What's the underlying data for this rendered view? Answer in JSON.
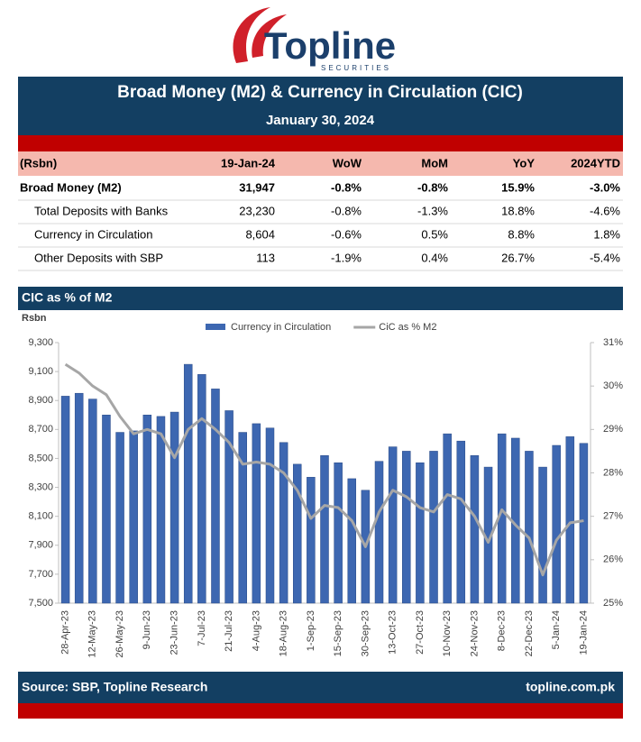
{
  "header": {
    "logo": "Topline",
    "logo_sub": "SECURITIES",
    "title": "Broad Money (M2) & Currency in Circulation (CIC)",
    "date": "January 30, 2024"
  },
  "table": {
    "columns": [
      "(Rsbn)",
      "19-Jan-24",
      "WoW",
      "MoM",
      "YoY",
      "2024YTD"
    ],
    "rows": [
      [
        "Broad Money (M2)",
        "31,947",
        "-0.8%",
        "-0.8%",
        "15.9%",
        "-3.0%"
      ],
      [
        "Total Deposits with Banks",
        "23,230",
        "-0.8%",
        "-1.3%",
        "18.8%",
        "-4.6%"
      ],
      [
        "Currency in Circulation",
        "8,604",
        "-0.6%",
        "0.5%",
        "8.8%",
        "1.8%"
      ],
      [
        "Other Deposits with SBP",
        "113",
        "-1.9%",
        "0.4%",
        "26.7%",
        "-5.4%"
      ]
    ]
  },
  "section_title": "CIC as % of M2",
  "chart_data": {
    "type": "bar_line",
    "y_label": "Rsbn",
    "categories": [
      "28-Apr-23",
      null,
      "12-May-23",
      null,
      "26-May-23",
      null,
      "9-Jun-23",
      null,
      "23-Jun-23",
      null,
      "7-Jul-23",
      null,
      "21-Jul-23",
      null,
      "4-Aug-23",
      null,
      "18-Aug-23",
      null,
      "1-Sep-23",
      null,
      "15-Sep-23",
      null,
      "30-Sep-23",
      null,
      "13-Oct-23",
      null,
      "27-Oct-23",
      null,
      "10-Nov-23",
      null,
      "24-Nov-23",
      null,
      "8-Dec-23",
      null,
      "22-Dec-23",
      null,
      "5-Jan-24",
      null,
      "19-Jan-24"
    ],
    "series": [
      {
        "name": "Currency in Circulation",
        "color": "#3d67b1",
        "type": "bar",
        "values": [
          8930,
          8950,
          8910,
          8800,
          8680,
          8690,
          8800,
          8790,
          8820,
          9150,
          9080,
          8980,
          8830,
          8680,
          8740,
          8710,
          8610,
          8460,
          8370,
          8520,
          8470,
          8360,
          8280,
          8480,
          8580,
          8550,
          8470,
          8550,
          8670,
          8620,
          8520,
          8440,
          8670,
          8640,
          8550,
          8440,
          8590,
          8650,
          8604
        ]
      },
      {
        "name": "CiC as % M2",
        "color": "#a6a6a6",
        "type": "line",
        "axis": "y2",
        "values": [
          30.5,
          30.3,
          30.0,
          29.8,
          29.3,
          28.9,
          29.0,
          28.9,
          28.35,
          29.0,
          29.25,
          29.0,
          28.7,
          28.2,
          28.25,
          28.2,
          28.0,
          27.6,
          26.95,
          27.25,
          27.2,
          26.9,
          26.3,
          27.1,
          27.6,
          27.45,
          27.2,
          27.1,
          27.5,
          27.4,
          27.0,
          26.4,
          27.15,
          26.8,
          26.5,
          25.65,
          26.45,
          26.85,
          26.9
        ]
      }
    ],
    "ylim": [
      7500,
      9300
    ],
    "yticks": [
      {
        "value": 7500,
        "label": "7,500"
      },
      {
        "value": 7700,
        "label": "7,700"
      },
      {
        "value": 7900,
        "label": "7,900"
      },
      {
        "value": 8100,
        "label": "8,100"
      },
      {
        "value": 8300,
        "label": "8,300"
      },
      {
        "value": 8500,
        "label": "8,500"
      },
      {
        "value": 8700,
        "label": "8,700"
      },
      {
        "value": 8900,
        "label": "8,900"
      },
      {
        "value": 9100,
        "label": "9,100"
      },
      {
        "value": 9300,
        "label": "9,300"
      }
    ],
    "y2lim": [
      25,
      31
    ],
    "y2ticks": [
      {
        "value": 25,
        "label": "25%"
      },
      {
        "value": 26,
        "label": "26%"
      },
      {
        "value": 27,
        "label": "27%"
      },
      {
        "value": 28,
        "label": "28%"
      },
      {
        "value": 29,
        "label": "29%"
      },
      {
        "value": 30,
        "label": "30%"
      },
      {
        "value": 31,
        "label": "31%"
      }
    ],
    "legend": "top"
  },
  "footer": {
    "source": "Source: SBP, Topline Research",
    "url": "topline.com.pk"
  }
}
